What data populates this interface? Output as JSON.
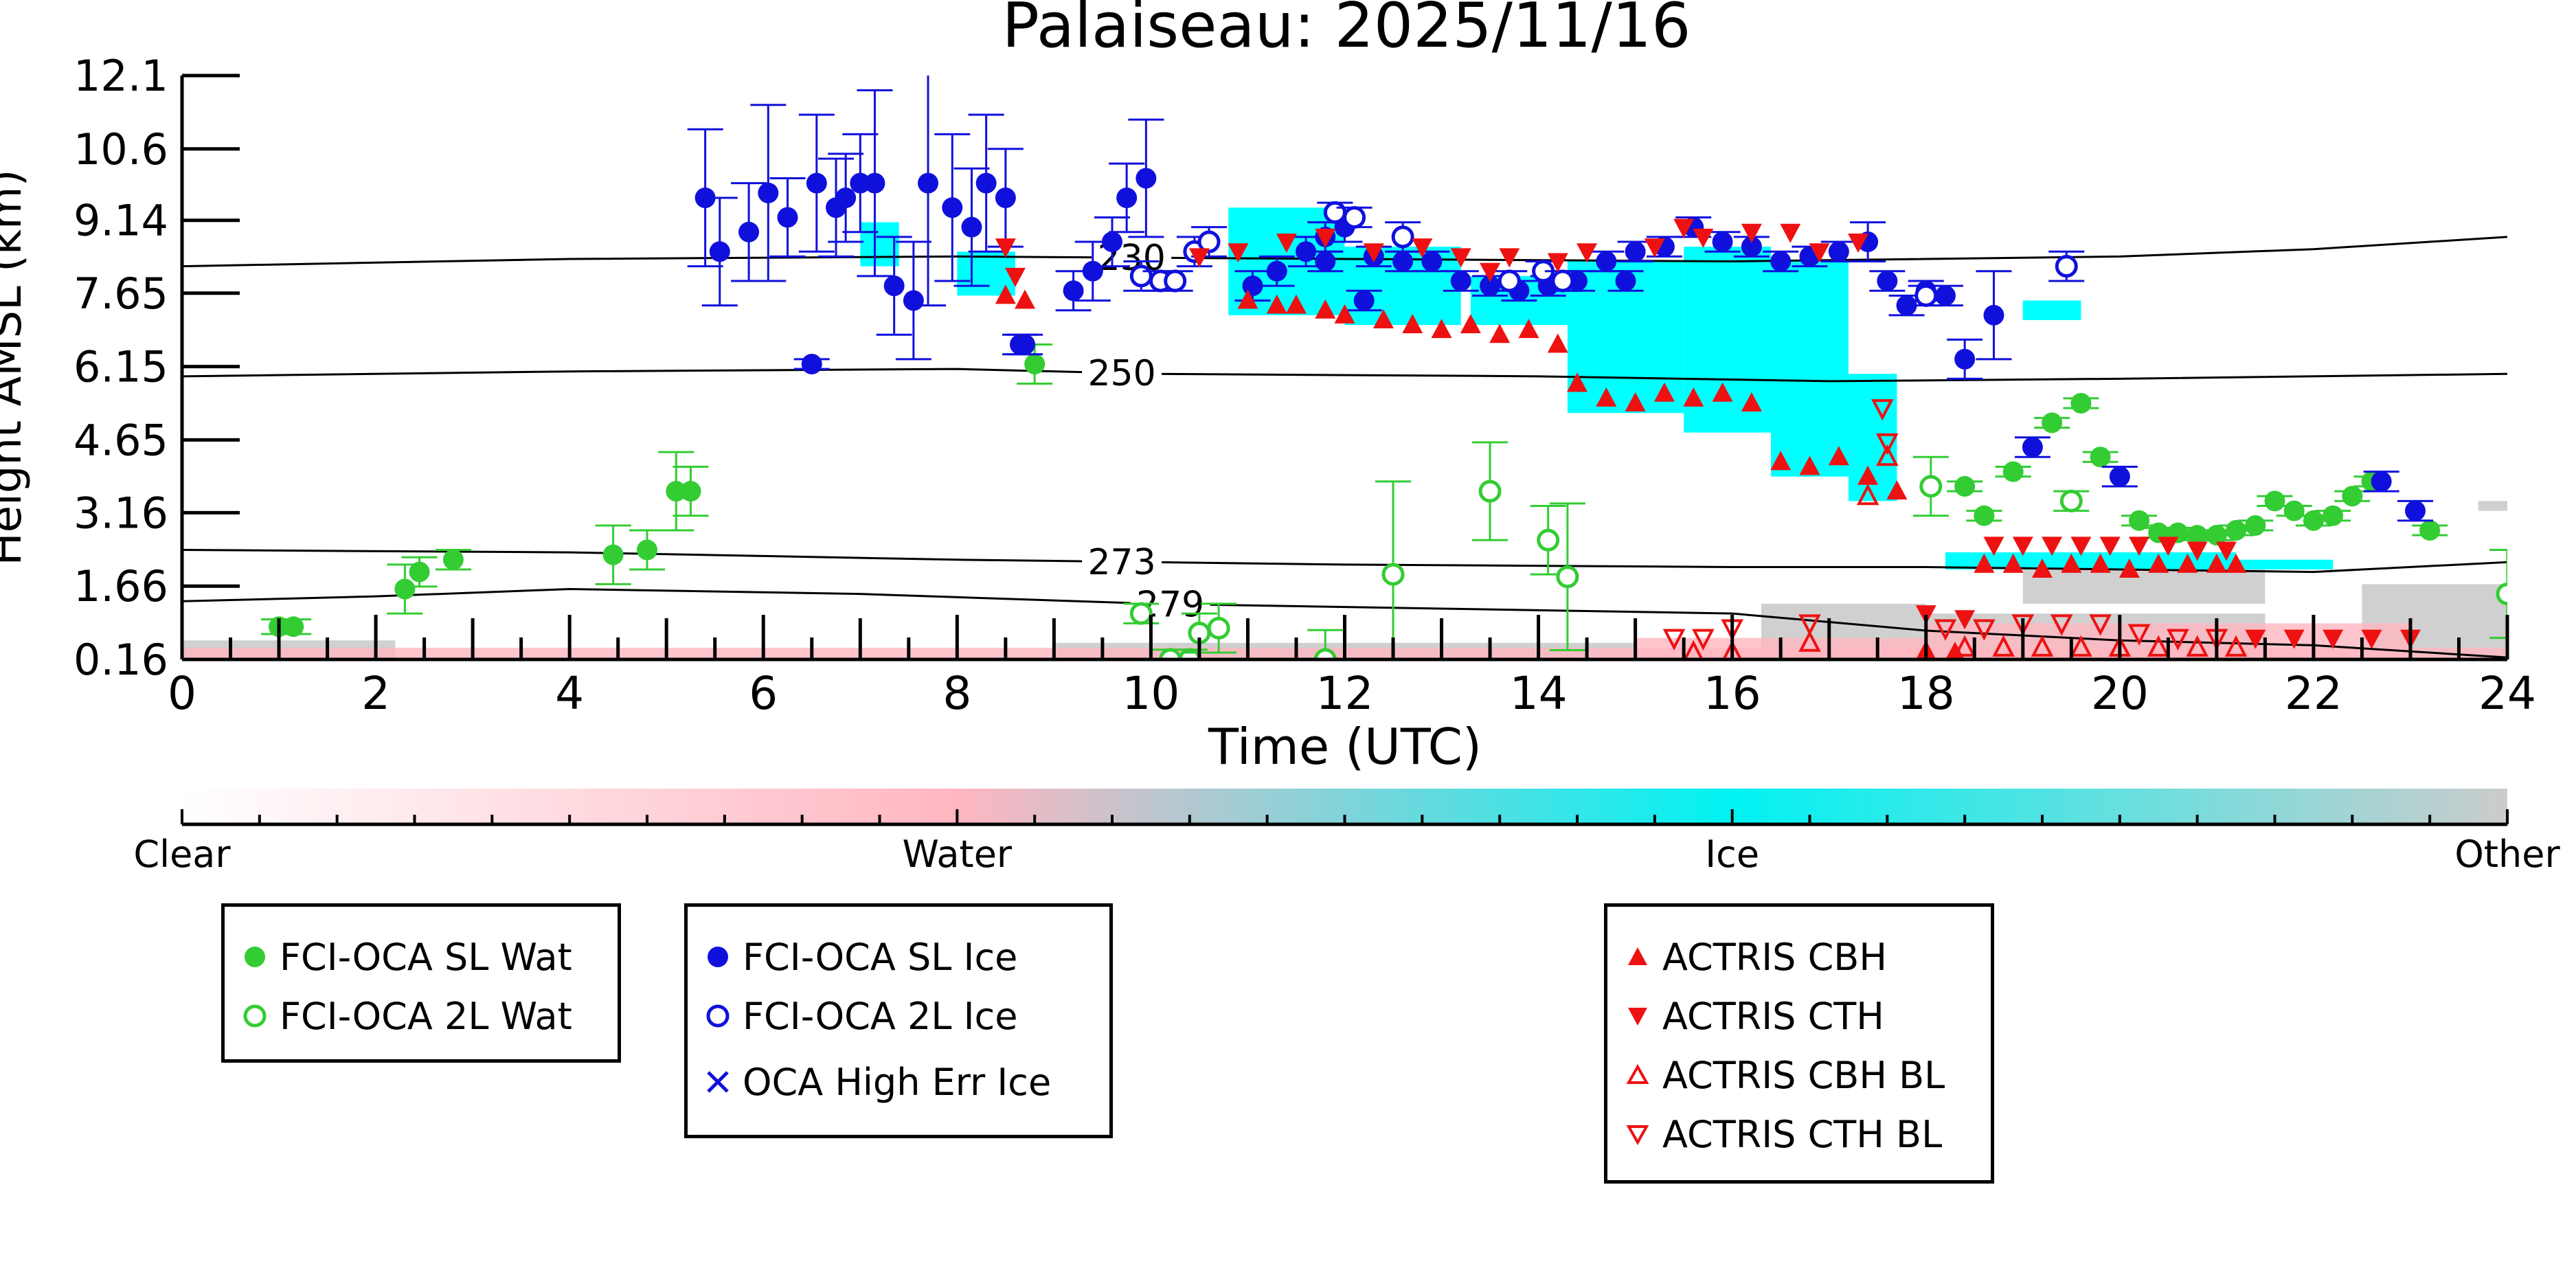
{
  "chart_data": {
    "type": "scatter",
    "title": "Palaiseau: 2025/11/16",
    "xlabel": "Time (UTC)",
    "ylabel": "Height AMSL (km)",
    "xlim": [
      0,
      24
    ],
    "ylim": [
      0.16,
      12.1
    ],
    "x_ticks": [
      0,
      2,
      4,
      6,
      8,
      10,
      12,
      14,
      16,
      18,
      20,
      22,
      24
    ],
    "y_ticks": [
      "0.16",
      "1.66",
      "3.16",
      "4.65",
      "6.15",
      "7.65",
      "9.14",
      "10.6",
      "12.1"
    ],
    "y_tick_values": [
      0.16,
      1.66,
      3.16,
      4.65,
      6.15,
      7.65,
      9.14,
      10.6,
      12.1
    ],
    "colors": {
      "sl_wat": "#33cc33",
      "sl_ice": "#1010dd",
      "actris": "#ee1111",
      "ice_mask": "#00ffff",
      "water_mask": "#ffb6c1",
      "other_mask": "#c8c8c8"
    },
    "colorbar": {
      "labels": [
        "Clear",
        "Water",
        "Ice",
        "Other"
      ],
      "colors": [
        "#ffffff",
        "#ffb6c1",
        "#00f2f2",
        "#cccccc"
      ]
    },
    "isotherms": [
      {
        "label": "230",
        "label_x": 9.8,
        "points": [
          [
            0,
            8.2
          ],
          [
            4,
            8.35
          ],
          [
            8,
            8.4
          ],
          [
            12,
            8.35
          ],
          [
            16,
            8.3
          ],
          [
            20,
            8.4
          ],
          [
            22,
            8.55
          ],
          [
            24,
            8.8
          ]
        ]
      },
      {
        "label": "250",
        "label_x": 9.7,
        "points": [
          [
            0,
            5.95
          ],
          [
            4,
            6.05
          ],
          [
            8,
            6.1
          ],
          [
            10,
            6.0
          ],
          [
            14,
            5.95
          ],
          [
            17,
            5.85
          ],
          [
            20,
            5.9
          ],
          [
            24,
            6.0
          ]
        ]
      },
      {
        "label": "273",
        "label_x": 9.7,
        "points": [
          [
            0,
            2.4
          ],
          [
            4,
            2.35
          ],
          [
            8,
            2.2
          ],
          [
            12,
            2.1
          ],
          [
            16,
            2.05
          ],
          [
            18,
            2.05
          ],
          [
            20,
            2.0
          ],
          [
            22,
            1.95
          ],
          [
            24,
            2.15
          ]
        ]
      },
      {
        "label": "279",
        "label_x": 10.2,
        "points": [
          [
            0,
            1.35
          ],
          [
            2,
            1.45
          ],
          [
            4,
            1.6
          ],
          [
            7,
            1.5
          ],
          [
            10,
            1.3
          ],
          [
            13,
            1.2
          ],
          [
            16,
            1.1
          ],
          [
            18,
            0.75
          ],
          [
            20,
            0.55
          ],
          [
            22,
            0.45
          ],
          [
            24,
            0.2
          ]
        ]
      }
    ],
    "ice_mask_regions": [
      {
        "x": [
          7.0,
          7.4
        ],
        "y": [
          8.2,
          9.1
        ]
      },
      {
        "x": [
          8.0,
          8.6
        ],
        "y": [
          7.6,
          8.5
        ]
      },
      {
        "x": [
          10.8,
          12.0
        ],
        "y": [
          7.2,
          9.4
        ]
      },
      {
        "x": [
          12.0,
          13.2
        ],
        "y": [
          7.0,
          8.6
        ]
      },
      {
        "x": [
          13.3,
          14.3
        ],
        "y": [
          7.0,
          8.0
        ]
      },
      {
        "x": [
          14.3,
          15.5
        ],
        "y": [
          5.2,
          8.3
        ]
      },
      {
        "x": [
          15.5,
          16.4
        ],
        "y": [
          4.8,
          8.6
        ]
      },
      {
        "x": [
          16.4,
          17.2
        ],
        "y": [
          3.9,
          8.3
        ]
      },
      {
        "x": [
          17.2,
          17.7
        ],
        "y": [
          3.4,
          6.0
        ]
      },
      {
        "x": [
          18.2,
          21.2
        ],
        "y": [
          2.0,
          2.35
        ]
      },
      {
        "x": [
          21.2,
          22.2
        ],
        "y": [
          2.0,
          2.2
        ]
      },
      {
        "x": [
          19.0,
          19.6
        ],
        "y": [
          7.1,
          7.5
        ]
      }
    ],
    "water_mask_regions": [
      {
        "x": [
          0.0,
          24.0
        ],
        "y": [
          0.16,
          0.4
        ]
      },
      {
        "x": [
          15.0,
          18.0
        ],
        "y": [
          0.16,
          0.6
        ]
      },
      {
        "x": [
          18.0,
          23.0
        ],
        "y": [
          0.16,
          0.9
        ]
      }
    ],
    "other_mask_regions": [
      {
        "x": [
          0.0,
          2.2
        ],
        "y": [
          0.16,
          0.55
        ]
      },
      {
        "x": [
          9.0,
          15.0
        ],
        "y": [
          0.16,
          0.5
        ]
      },
      {
        "x": [
          16.3,
          18.0
        ],
        "y": [
          0.16,
          1.3
        ]
      },
      {
        "x": [
          18.0,
          21.5
        ],
        "y": [
          0.16,
          1.1
        ]
      },
      {
        "x": [
          19.0,
          21.5
        ],
        "y": [
          1.3,
          2.1
        ]
      },
      {
        "x": [
          22.5,
          24.0
        ],
        "y": [
          0.16,
          1.7
        ]
      },
      {
        "x": [
          23.7,
          24.0
        ],
        "y": [
          3.2,
          3.4
        ]
      }
    ],
    "series": [
      {
        "name": "FCI-OCA SL Wat",
        "marker": "filled-circle",
        "color": "#33cc33",
        "x": [
          1.0,
          1.15,
          2.3,
          2.45,
          2.8,
          4.45,
          4.8,
          5.1,
          5.25,
          8.8,
          18.4,
          18.6,
          18.9,
          19.3,
          19.6,
          19.8,
          20.2,
          20.4,
          20.6,
          20.8,
          21.0,
          21.2,
          21.4,
          21.6,
          21.8,
          22.0,
          22.2,
          22.4,
          22.6,
          23.2
        ],
        "y": [
          0.83,
          0.83,
          1.6,
          1.95,
          2.2,
          2.3,
          2.4,
          3.6,
          3.6,
          6.2,
          3.7,
          3.1,
          4.0,
          5.0,
          5.4,
          4.3,
          3.0,
          2.75,
          2.75,
          2.7,
          2.7,
          2.8,
          2.9,
          3.4,
          3.2,
          3.0,
          3.1,
          3.5,
          3.8,
          2.8
        ],
        "err": [
          0.15,
          0.15,
          0.5,
          0.3,
          0.2,
          0.6,
          0.4,
          0.8,
          0.5,
          0.4,
          0.1,
          0.1,
          0.1,
          0.1,
          0.1,
          0.1,
          0.1,
          0.1,
          0.1,
          0.1,
          0.1,
          0.1,
          0.1,
          0.1,
          0.1,
          0.1,
          0.1,
          0.1,
          0.1,
          0.1
        ]
      },
      {
        "name": "FCI-OCA 2L Wat",
        "marker": "open-circle",
        "color": "#33cc33",
        "x": [
          9.9,
          10.2,
          10.4,
          10.5,
          10.7,
          11.8,
          12.5,
          13.5,
          14.1,
          14.3,
          18.05,
          19.5,
          24.0
        ],
        "y": [
          1.1,
          0.16,
          0.16,
          0.7,
          0.8,
          0.16,
          1.9,
          3.6,
          2.6,
          1.85,
          3.7,
          3.4,
          1.5
        ],
        "err": [
          0.2,
          0.2,
          0.2,
          0.4,
          0.5,
          0.6,
          1.9,
          1.0,
          0.7,
          1.5,
          0.6,
          0.2,
          0.9
        ]
      },
      {
        "name": "FCI-OCA SL Ice",
        "marker": "filled-circle",
        "color": "#1010dd",
        "x": [
          5.4,
          5.55,
          5.85,
          6.05,
          6.25,
          6.55,
          6.75,
          6.85,
          7.0,
          7.15,
          7.35,
          7.55,
          7.7,
          7.95,
          8.15,
          8.3,
          8.5,
          8.65,
          9.2,
          9.4,
          9.6,
          9.75,
          9.95,
          6.5,
          8.7,
          11.05,
          11.3,
          11.6,
          11.8,
          12.0,
          12.3,
          12.6,
          12.9,
          13.2,
          13.5,
          13.8,
          14.1,
          14.4,
          14.7,
          15.0,
          15.3,
          15.6,
          15.9,
          16.2,
          16.5,
          16.8,
          17.1,
          17.4,
          17.6,
          17.8,
          18.0,
          18.2,
          18.4,
          18.7,
          19.1,
          20.0,
          22.7,
          23.05,
          11.8,
          12.2,
          14.9
        ],
        "y": [
          9.6,
          8.5,
          8.9,
          9.7,
          9.2,
          9.9,
          9.4,
          9.6,
          9.9,
          9.9,
          7.8,
          7.5,
          9.9,
          9.4,
          9.0,
          9.9,
          9.6,
          6.6,
          7.7,
          8.1,
          8.7,
          9.6,
          10.0,
          6.2,
          6.6,
          7.8,
          8.1,
          8.5,
          8.8,
          9.0,
          8.4,
          8.3,
          8.3,
          7.9,
          7.8,
          7.7,
          7.8,
          7.9,
          8.3,
          8.5,
          8.6,
          9.0,
          8.7,
          8.6,
          8.3,
          8.4,
          8.5,
          8.7,
          7.9,
          7.4,
          7.7,
          7.6,
          6.3,
          7.2,
          4.5,
          3.9,
          3.8,
          3.2,
          8.3,
          7.5,
          7.9
        ],
        "err": [
          1.4,
          1.1,
          1.0,
          1.8,
          0.8,
          1.4,
          1.0,
          0.9,
          1.0,
          1.9,
          1.0,
          1.2,
          2.5,
          1.5,
          1.2,
          1.4,
          1.0,
          0.2,
          0.4,
          0.6,
          0.5,
          0.7,
          1.2,
          0.1,
          0.2,
          0.3,
          0.3,
          0.3,
          0.3,
          0.3,
          0.2,
          0.2,
          0.2,
          0.2,
          0.2,
          0.2,
          0.2,
          0.2,
          0.2,
          0.2,
          0.2,
          0.2,
          0.2,
          0.2,
          0.2,
          0.2,
          0.2,
          0.4,
          0.2,
          0.2,
          0.2,
          0.2,
          0.4,
          0.9,
          0.2,
          0.2,
          0.2,
          0.2,
          0.2,
          0.2,
          0.2
        ]
      },
      {
        "name": "FCI-OCA 2L Ice",
        "marker": "open-circle",
        "color": "#1010dd",
        "x": [
          9.9,
          10.1,
          10.25,
          10.45,
          10.6,
          11.9,
          12.1,
          12.6,
          13.7,
          14.05,
          14.25,
          18.0,
          19.45
        ],
        "y": [
          8.0,
          7.9,
          7.9,
          8.5,
          8.7,
          9.3,
          9.2,
          8.8,
          7.9,
          8.1,
          7.9,
          7.6,
          8.2
        ],
        "err": [
          0.3,
          0.2,
          0.2,
          0.3,
          0.3,
          0.2,
          0.2,
          0.3,
          0.2,
          0.2,
          0.2,
          0.2,
          0.3
        ]
      },
      {
        "name": "OCA High Err Ice",
        "marker": "x",
        "color": "#1010dd",
        "x": [],
        "y": []
      },
      {
        "name": "ACTRIS CBH",
        "marker": "triangle-up",
        "color": "#ee1111",
        "x": [
          8.5,
          8.7,
          11.0,
          11.3,
          11.5,
          11.8,
          12.0,
          12.4,
          12.7,
          13.0,
          13.3,
          13.6,
          13.9,
          14.2,
          14.4,
          14.7,
          15.0,
          15.3,
          15.6,
          15.9,
          16.2,
          16.5,
          16.8,
          17.1,
          17.4,
          17.7,
          18.0,
          18.3,
          18.6,
          18.9,
          19.2,
          19.5,
          19.8,
          20.1,
          20.4,
          20.7,
          21.0,
          21.2
        ],
        "y": [
          7.6,
          7.5,
          7.5,
          7.4,
          7.4,
          7.3,
          7.2,
          7.1,
          7.0,
          6.9,
          7.0,
          6.8,
          6.9,
          6.6,
          5.8,
          5.5,
          5.4,
          5.6,
          5.5,
          5.6,
          5.4,
          4.2,
          4.1,
          4.3,
          3.9,
          3.6,
          0.3,
          0.3,
          2.1,
          2.1,
          2.0,
          2.1,
          2.1,
          2.0,
          2.1,
          2.1,
          2.1,
          2.1
        ]
      },
      {
        "name": "ACTRIS CTH",
        "marker": "triangle-down",
        "color": "#ee1111",
        "x": [
          8.5,
          8.6,
          10.5,
          10.9,
          11.4,
          11.8,
          12.3,
          12.8,
          13.2,
          13.5,
          13.7,
          14.2,
          14.5,
          15.2,
          15.5,
          15.7,
          16.2,
          16.6,
          16.9,
          17.3,
          18.0,
          18.4,
          18.7,
          19.0,
          19.3,
          19.6,
          19.9,
          20.2,
          20.5,
          20.8,
          21.1,
          21.4,
          21.8,
          22.2,
          22.6,
          23.0
        ],
        "y": [
          8.6,
          8.0,
          8.4,
          8.5,
          8.7,
          8.8,
          8.5,
          8.6,
          8.4,
          8.1,
          8.4,
          8.3,
          8.5,
          8.6,
          9.0,
          8.8,
          8.9,
          8.9,
          8.5,
          8.7,
          1.1,
          1.0,
          2.5,
          2.5,
          2.5,
          2.5,
          2.5,
          2.5,
          2.5,
          2.4,
          2.4,
          0.6,
          0.6,
          0.6,
          0.6,
          0.6
        ]
      },
      {
        "name": "ACTRIS CBH BL",
        "marker": "open-triangle-up",
        "color": "#ee1111",
        "x": [
          15.6,
          16.0,
          16.8,
          17.4,
          17.6,
          18.0,
          18.4,
          18.8,
          19.2,
          19.6,
          20.0,
          20.4,
          20.8,
          21.2
        ],
        "y": [
          0.3,
          0.3,
          0.5,
          3.5,
          4.3,
          0.3,
          0.4,
          0.4,
          0.4,
          0.4,
          0.4,
          0.4,
          0.4,
          0.4
        ]
      },
      {
        "name": "ACTRIS CTH BL",
        "marker": "open-triangle-down",
        "color": "#ee1111",
        "x": [
          15.4,
          15.7,
          16.0,
          16.8,
          17.55,
          17.6,
          18.2,
          18.6,
          19.0,
          19.4,
          19.8,
          20.2,
          20.6,
          21.0
        ],
        "y": [
          0.6,
          0.6,
          0.8,
          0.9,
          5.3,
          4.6,
          0.8,
          0.8,
          0.9,
          0.9,
          0.9,
          0.7,
          0.6,
          0.6
        ]
      }
    ]
  },
  "legends": [
    {
      "entries": [
        "FCI-OCA SL Wat",
        "FCI-OCA 2L Wat"
      ]
    },
    {
      "entries": [
        "FCI-OCA SL Ice",
        "FCI-OCA 2L Ice",
        "OCA High Err Ice"
      ]
    },
    {
      "entries": [
        "ACTRIS CBH",
        "ACTRIS CTH",
        "ACTRIS CBH BL",
        "ACTRIS CTH BL"
      ]
    }
  ]
}
